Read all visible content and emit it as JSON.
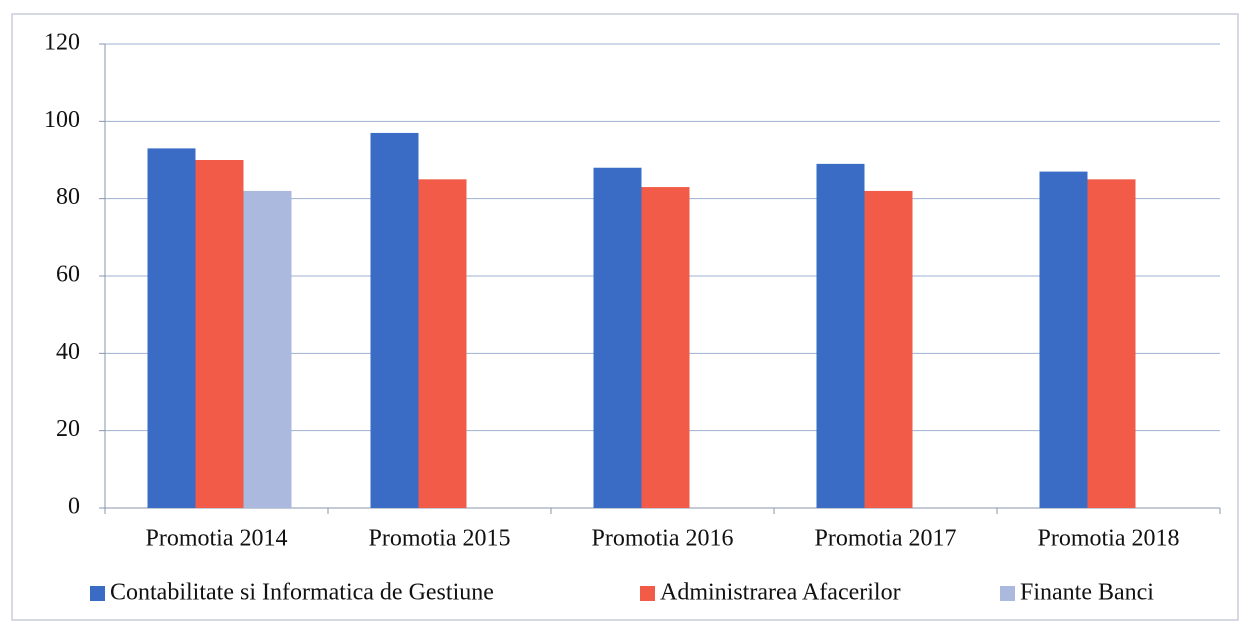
{
  "chart_data": {
    "type": "bar",
    "categories": [
      "Promotia 2014",
      "Promotia 2015",
      "Promotia 2016",
      "Promotia 2017",
      "Promotia 2018"
    ],
    "series": [
      {
        "name": "Contabilitate si Informatica de Gestiune",
        "color": "#3a6cc6",
        "values": [
          93,
          97,
          88,
          89,
          87
        ]
      },
      {
        "name": "Administrarea Afacerilor",
        "color": "#f25b47",
        "values": [
          90,
          85,
          83,
          82,
          85
        ]
      },
      {
        "name": "Finante Banci",
        "color": "#aab9dd",
        "values": [
          82,
          null,
          null,
          null,
          null
        ]
      }
    ],
    "ylim": [
      0,
      120
    ],
    "yticks": [
      0,
      20,
      40,
      60,
      80,
      100,
      120
    ],
    "grid": true,
    "legend": "bottom"
  }
}
